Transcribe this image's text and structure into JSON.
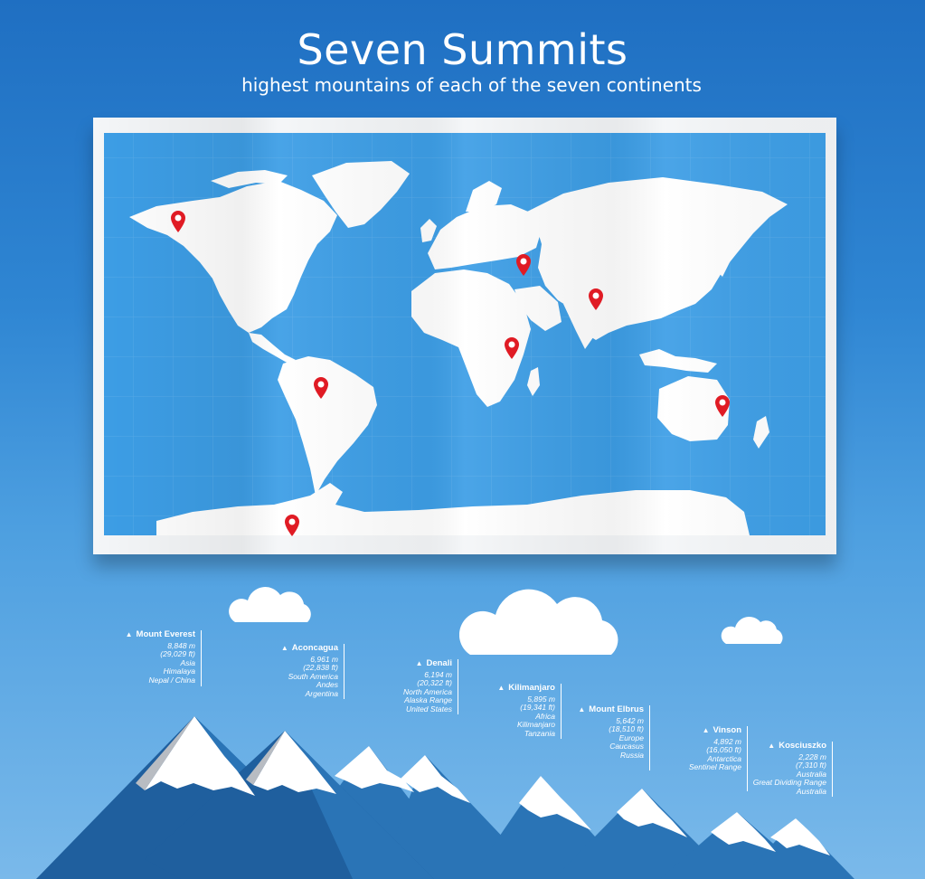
{
  "header": {
    "title": "Seven Summits",
    "subtitle": "highest mountains of each of the seven continents"
  },
  "colors": {
    "background_top": "#1f6fc2",
    "background_bottom": "#7ab9ea",
    "ocean": "#3d9ee6",
    "land": "#ffffff",
    "pin": "#e01b24",
    "mountain_dark": "#1f5f9e",
    "mountain_mid": "#2a74b6",
    "snow": "#ffffff",
    "rock": "#b8bcc2"
  },
  "map": {
    "pins": [
      {
        "summit": "Denali",
        "icon": "map-pin-icon"
      },
      {
        "summit": "Aconcagua",
        "icon": "map-pin-icon"
      },
      {
        "summit": "Vinson",
        "icon": "map-pin-icon"
      },
      {
        "summit": "Kilimanjaro",
        "icon": "map-pin-icon"
      },
      {
        "summit": "Mount Elbrus",
        "icon": "map-pin-icon"
      },
      {
        "summit": "Mount Everest",
        "icon": "map-pin-icon"
      },
      {
        "summit": "Kosciuszko",
        "icon": "map-pin-icon"
      }
    ]
  },
  "summits": [
    {
      "name": "Mount Everest",
      "height_m": "8,848 m",
      "height_ft": "(29,029 ft)",
      "continent": "Asia",
      "range": "Himalaya",
      "country": "Nepal / China"
    },
    {
      "name": "Aconcagua",
      "height_m": "6,961 m",
      "height_ft": "(22,838 ft)",
      "continent": "South America",
      "range": "Andes",
      "country": "Argentina"
    },
    {
      "name": "Denali",
      "height_m": "6,194 m",
      "height_ft": "(20,322 ft)",
      "continent": "North America",
      "range": "Alaska Range",
      "country": "United States"
    },
    {
      "name": "Kilimanjaro",
      "height_m": "5,895 m",
      "height_ft": "(19,341 ft)",
      "continent": "Africa",
      "range": "Kilimanjaro",
      "country": "Tanzania"
    },
    {
      "name": "Mount Elbrus",
      "height_m": "5,642 m",
      "height_ft": "(18,510 ft)",
      "continent": "Europe",
      "range": "Caucasus",
      "country": "Russia"
    },
    {
      "name": "Vinson",
      "height_m": "4,892 m",
      "height_ft": "(16,050 ft)",
      "continent": "Antarctica",
      "range": "Sentinel Range",
      "country": ""
    },
    {
      "name": "Kosciuszko",
      "height_m": "2,228 m",
      "height_ft": "(7,310 ft)",
      "continent": "Australia",
      "range": "Great Dividing Range",
      "country": "Australia"
    }
  ]
}
